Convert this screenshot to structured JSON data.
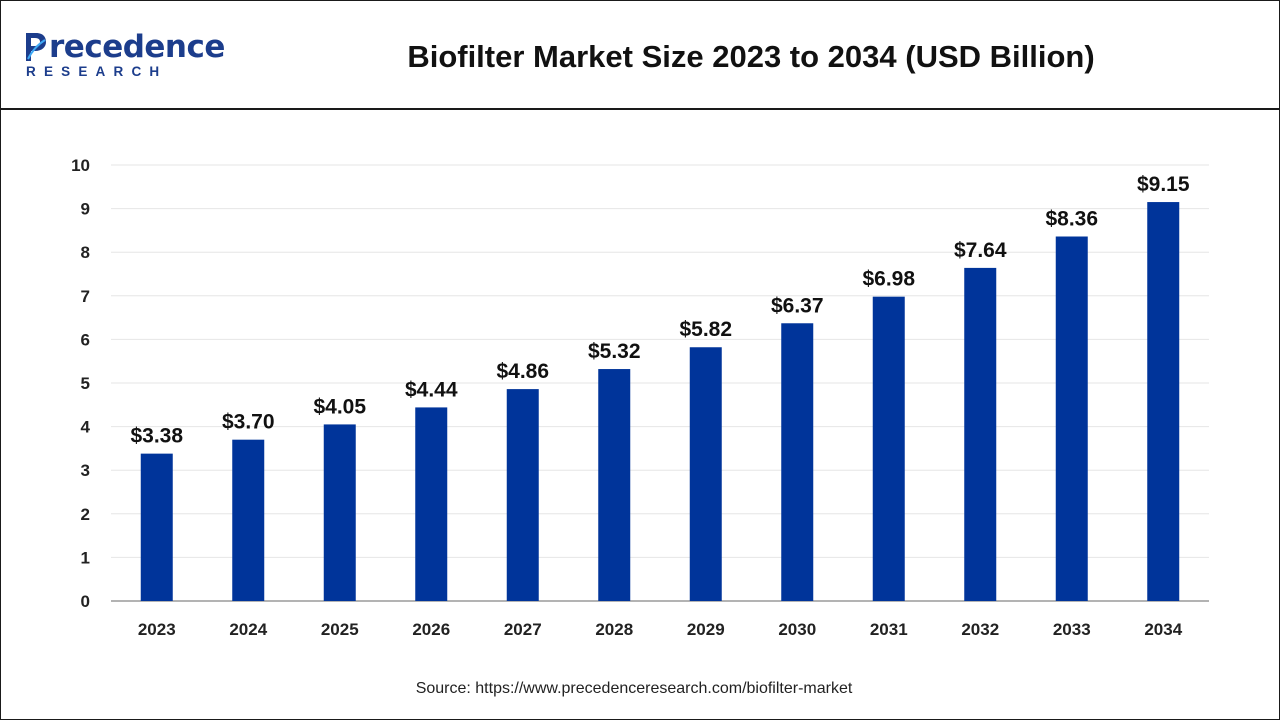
{
  "header": {
    "logo_main": "recedence",
    "logo_sub": "RESEARCH",
    "title": "Biofilter Market Size 2023 to 2034 (USD Billion)"
  },
  "source_text": "Source: https://www.precedenceresearch.com/biofilter-market",
  "colors": {
    "bar": "#00349a",
    "brand": "#1c3d8c",
    "grid": "#e6e6e6",
    "axis": "#9a9a9a"
  },
  "chart_data": {
    "type": "bar",
    "title": "Biofilter Market Size 2023 to 2034 (USD Billion)",
    "xlabel": "",
    "ylabel": "",
    "categories": [
      "2023",
      "2024",
      "2025",
      "2026",
      "2027",
      "2028",
      "2029",
      "2030",
      "2031",
      "2032",
      "2033",
      "2034"
    ],
    "values": [
      3.38,
      3.7,
      4.05,
      4.44,
      4.86,
      5.32,
      5.82,
      6.37,
      6.98,
      7.64,
      8.36,
      9.15
    ],
    "value_labels": [
      "$3.38",
      "$3.70",
      "$4.05",
      "$4.44",
      "$4.86",
      "$5.32",
      "$5.82",
      "$6.37",
      "$6.98",
      "$7.64",
      "$8.36",
      "$9.15"
    ],
    "ylim": [
      0,
      10
    ],
    "yticks": [
      "0",
      "1",
      "2",
      "3",
      "4",
      "5",
      "6",
      "7",
      "8",
      "9",
      "10"
    ],
    "grid": true,
    "legend": "none"
  }
}
